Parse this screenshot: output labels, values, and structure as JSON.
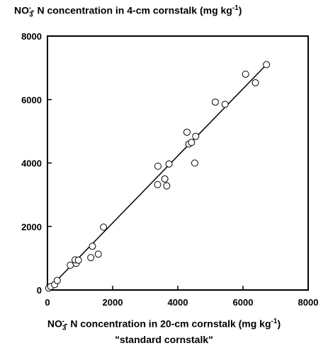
{
  "chart_data": {
    "type": "scatter",
    "ylabel_pre": "NO",
    "ylabel_sub": "3",
    "ylabel_sup_minus": "-",
    "ylabel_mid": "- N concentration  in 4-cm cornstalk (mg kg",
    "ylabel_sup": "-1",
    "ylabel_end": ")",
    "xlabel_pre": "NO",
    "xlabel_sub": "3",
    "xlabel_sup_minus": "-",
    "xlabel_mid": "- N concentration in 20-cm cornstalk (mg kg",
    "xlabel_sup": "-1",
    "xlabel_end": ")",
    "xlabel_line2": "\"standard cornstalk\"",
    "xlim": [
      0,
      8000
    ],
    "ylim": [
      0,
      8000
    ],
    "xticks": [
      "0",
      "2000",
      "4000",
      "6000",
      "8000"
    ],
    "yticks": [
      "0",
      "2000",
      "4000",
      "6000",
      "8000"
    ],
    "grid": false,
    "series": [
      {
        "marker": "open-circle",
        "points": [
          [
            40,
            60
          ],
          [
            100,
            110
          ],
          [
            220,
            170
          ],
          [
            300,
            300
          ],
          [
            700,
            780
          ],
          [
            880,
            840
          ],
          [
            850,
            950
          ],
          [
            950,
            940
          ],
          [
            1330,
            1020
          ],
          [
            1380,
            1380
          ],
          [
            1560,
            1130
          ],
          [
            1720,
            1980
          ],
          [
            3380,
            3320
          ],
          [
            3390,
            3900
          ],
          [
            3600,
            3500
          ],
          [
            3660,
            3280
          ],
          [
            3730,
            3970
          ],
          [
            4280,
            4970
          ],
          [
            4340,
            4600
          ],
          [
            4420,
            4650
          ],
          [
            4520,
            4000
          ],
          [
            4550,
            4840
          ],
          [
            5150,
            5920
          ],
          [
            5450,
            5850
          ],
          [
            6080,
            6800
          ],
          [
            6380,
            6530
          ],
          [
            6720,
            7100
          ]
        ]
      }
    ],
    "fit_line": {
      "x": [
        0,
        6720
      ],
      "y": [
        0,
        7100
      ]
    }
  }
}
